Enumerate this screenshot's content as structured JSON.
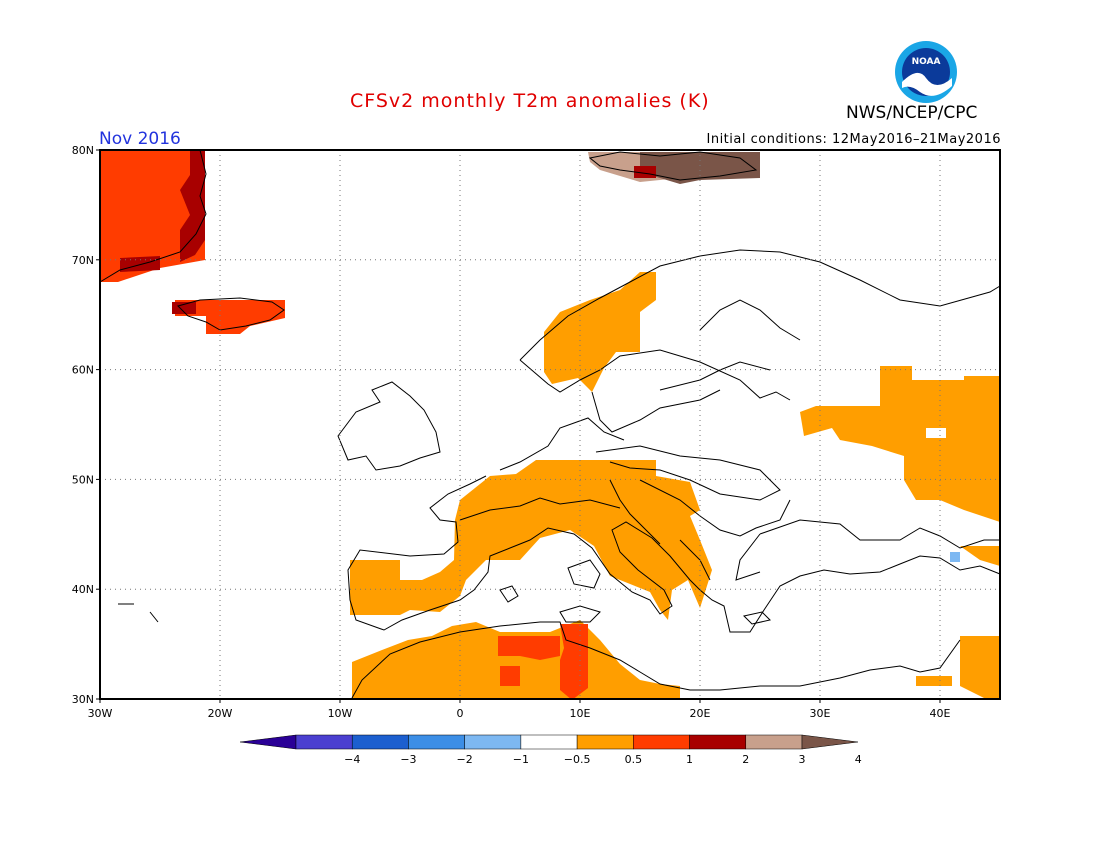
{
  "header": {
    "title": "CFSv2 monthly T2m anomalies (K)",
    "org": "NWS/NCEP/CPC",
    "month": "Nov 2016",
    "init_conditions": "Initial conditions: 12May2016–21May2016",
    "logo_text": "NOAA"
  },
  "axes": {
    "lon_labels": [
      "30W",
      "20W",
      "10W",
      "0",
      "10E",
      "20E",
      "30E",
      "40E"
    ],
    "lat_labels": [
      "80N",
      "70N",
      "60N",
      "50N",
      "40N",
      "30N"
    ]
  },
  "colorbar": {
    "tick_labels": [
      "−4",
      "−3",
      "−2",
      "−1",
      "−0.5",
      "0.5",
      "1",
      "2",
      "3",
      "4"
    ],
    "colors": [
      "#2a0096",
      "#4b3fd0",
      "#1c5fcf",
      "#3c8ee6",
      "#7db8f2",
      "#ffffff",
      "#ff9e00",
      "#ff3c00",
      "#a80000",
      "#c8a08c",
      "#7a5548"
    ]
  },
  "chart_data": {
    "type": "heatmap",
    "title": "CFSv2 monthly T2m anomalies (K)",
    "region": "Europe",
    "xlim": [
      -30,
      45
    ],
    "ylim": [
      30,
      80
    ],
    "legend_levels": [
      -4,
      -3,
      -2,
      -1,
      -0.5,
      0.5,
      1,
      2,
      3,
      4
    ],
    "anomaly_regions": [
      {
        "area": "East Greenland",
        "category": "2 to 3"
      },
      {
        "area": "Iceland",
        "category": "1 to 2"
      },
      {
        "area": "Svalbard",
        "category": "3 to 4"
      },
      {
        "area": "Western Norway",
        "category": "0.5 to 1"
      },
      {
        "area": "France, Iberia, Italy, Balkans, Alps",
        "category": "0.5 to 1"
      },
      {
        "area": "North Africa (Algeria, Tunisia, Libya)",
        "category": "0.5 to 1"
      },
      {
        "area": "Tunisia / eastern Algeria",
        "category": "1 to 2"
      },
      {
        "area": "Western Russia",
        "category": "0.5 to 1"
      },
      {
        "area": "Eastern Mediterranean / Near East",
        "category": "0.5 to 1"
      }
    ]
  }
}
